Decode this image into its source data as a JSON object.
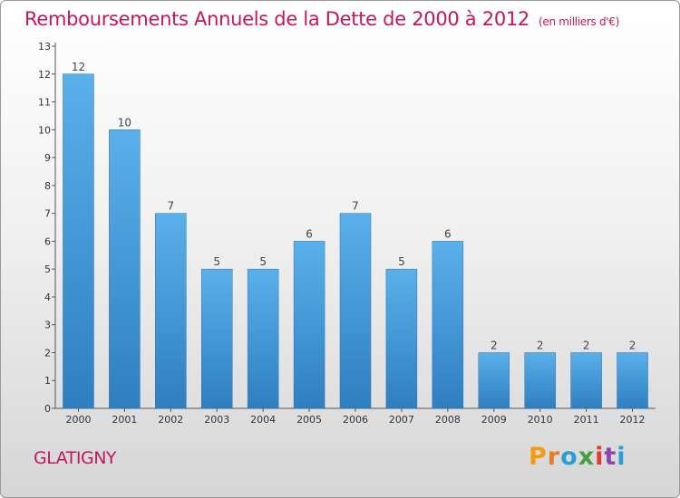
{
  "title": "Remboursements Annuels de la Dette de 2000 à 2012",
  "unit": "(en milliers d'€)",
  "commune": "GLATIGNY",
  "logo": {
    "text": "Proxiti",
    "letters": [
      "P",
      "r",
      "o",
      "x",
      "i",
      "t",
      "i"
    ],
    "colors": [
      "#f39c12",
      "#e67e22",
      "#2a9fd6",
      "#43a047",
      "#e53935",
      "#8e44ad",
      "#2a9fd6"
    ]
  },
  "colors": {
    "title": "#c2185b",
    "bar_top": "#5ab0ea",
    "bar_bottom": "#2e7fc0"
  },
  "chart_data": {
    "type": "bar",
    "categories": [
      "2000",
      "2001",
      "2002",
      "2003",
      "2004",
      "2005",
      "2006",
      "2007",
      "2008",
      "2009",
      "2010",
      "2011",
      "2012"
    ],
    "values": [
      12,
      10,
      7,
      5,
      5,
      6,
      7,
      5,
      6,
      2,
      2,
      2,
      2
    ],
    "ylim": [
      0,
      13
    ],
    "yticks": [
      0,
      1,
      2,
      3,
      4,
      5,
      6,
      7,
      8,
      9,
      10,
      11,
      12,
      13
    ],
    "grid": false,
    "legend": "none"
  }
}
